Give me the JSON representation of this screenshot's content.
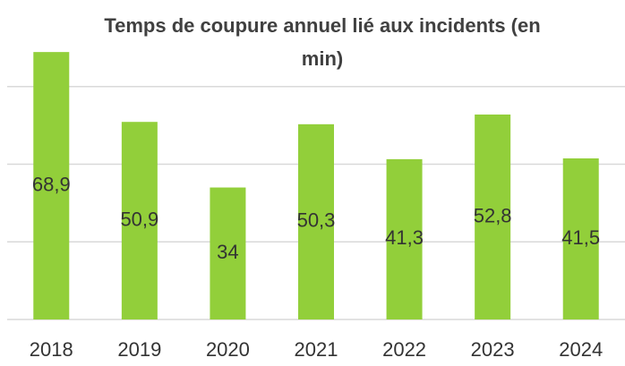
{
  "chart_data": {
    "type": "bar",
    "title": "Temps de coupure annuel lié aux incidents (en min)",
    "categories": [
      "2018",
      "2019",
      "2020",
      "2021",
      "2022",
      "2023",
      "2024"
    ],
    "values": [
      68.9,
      50.9,
      34,
      50.3,
      41.3,
      52.8,
      41.5
    ],
    "value_labels": [
      "68,9",
      "50,9",
      "34",
      "50,3",
      "41,3",
      "52,8",
      "41,5"
    ],
    "color": "#92cf3a",
    "ylim": [
      0,
      80
    ],
    "yticks": [
      0,
      20,
      40,
      60
    ],
    "grid": true
  }
}
